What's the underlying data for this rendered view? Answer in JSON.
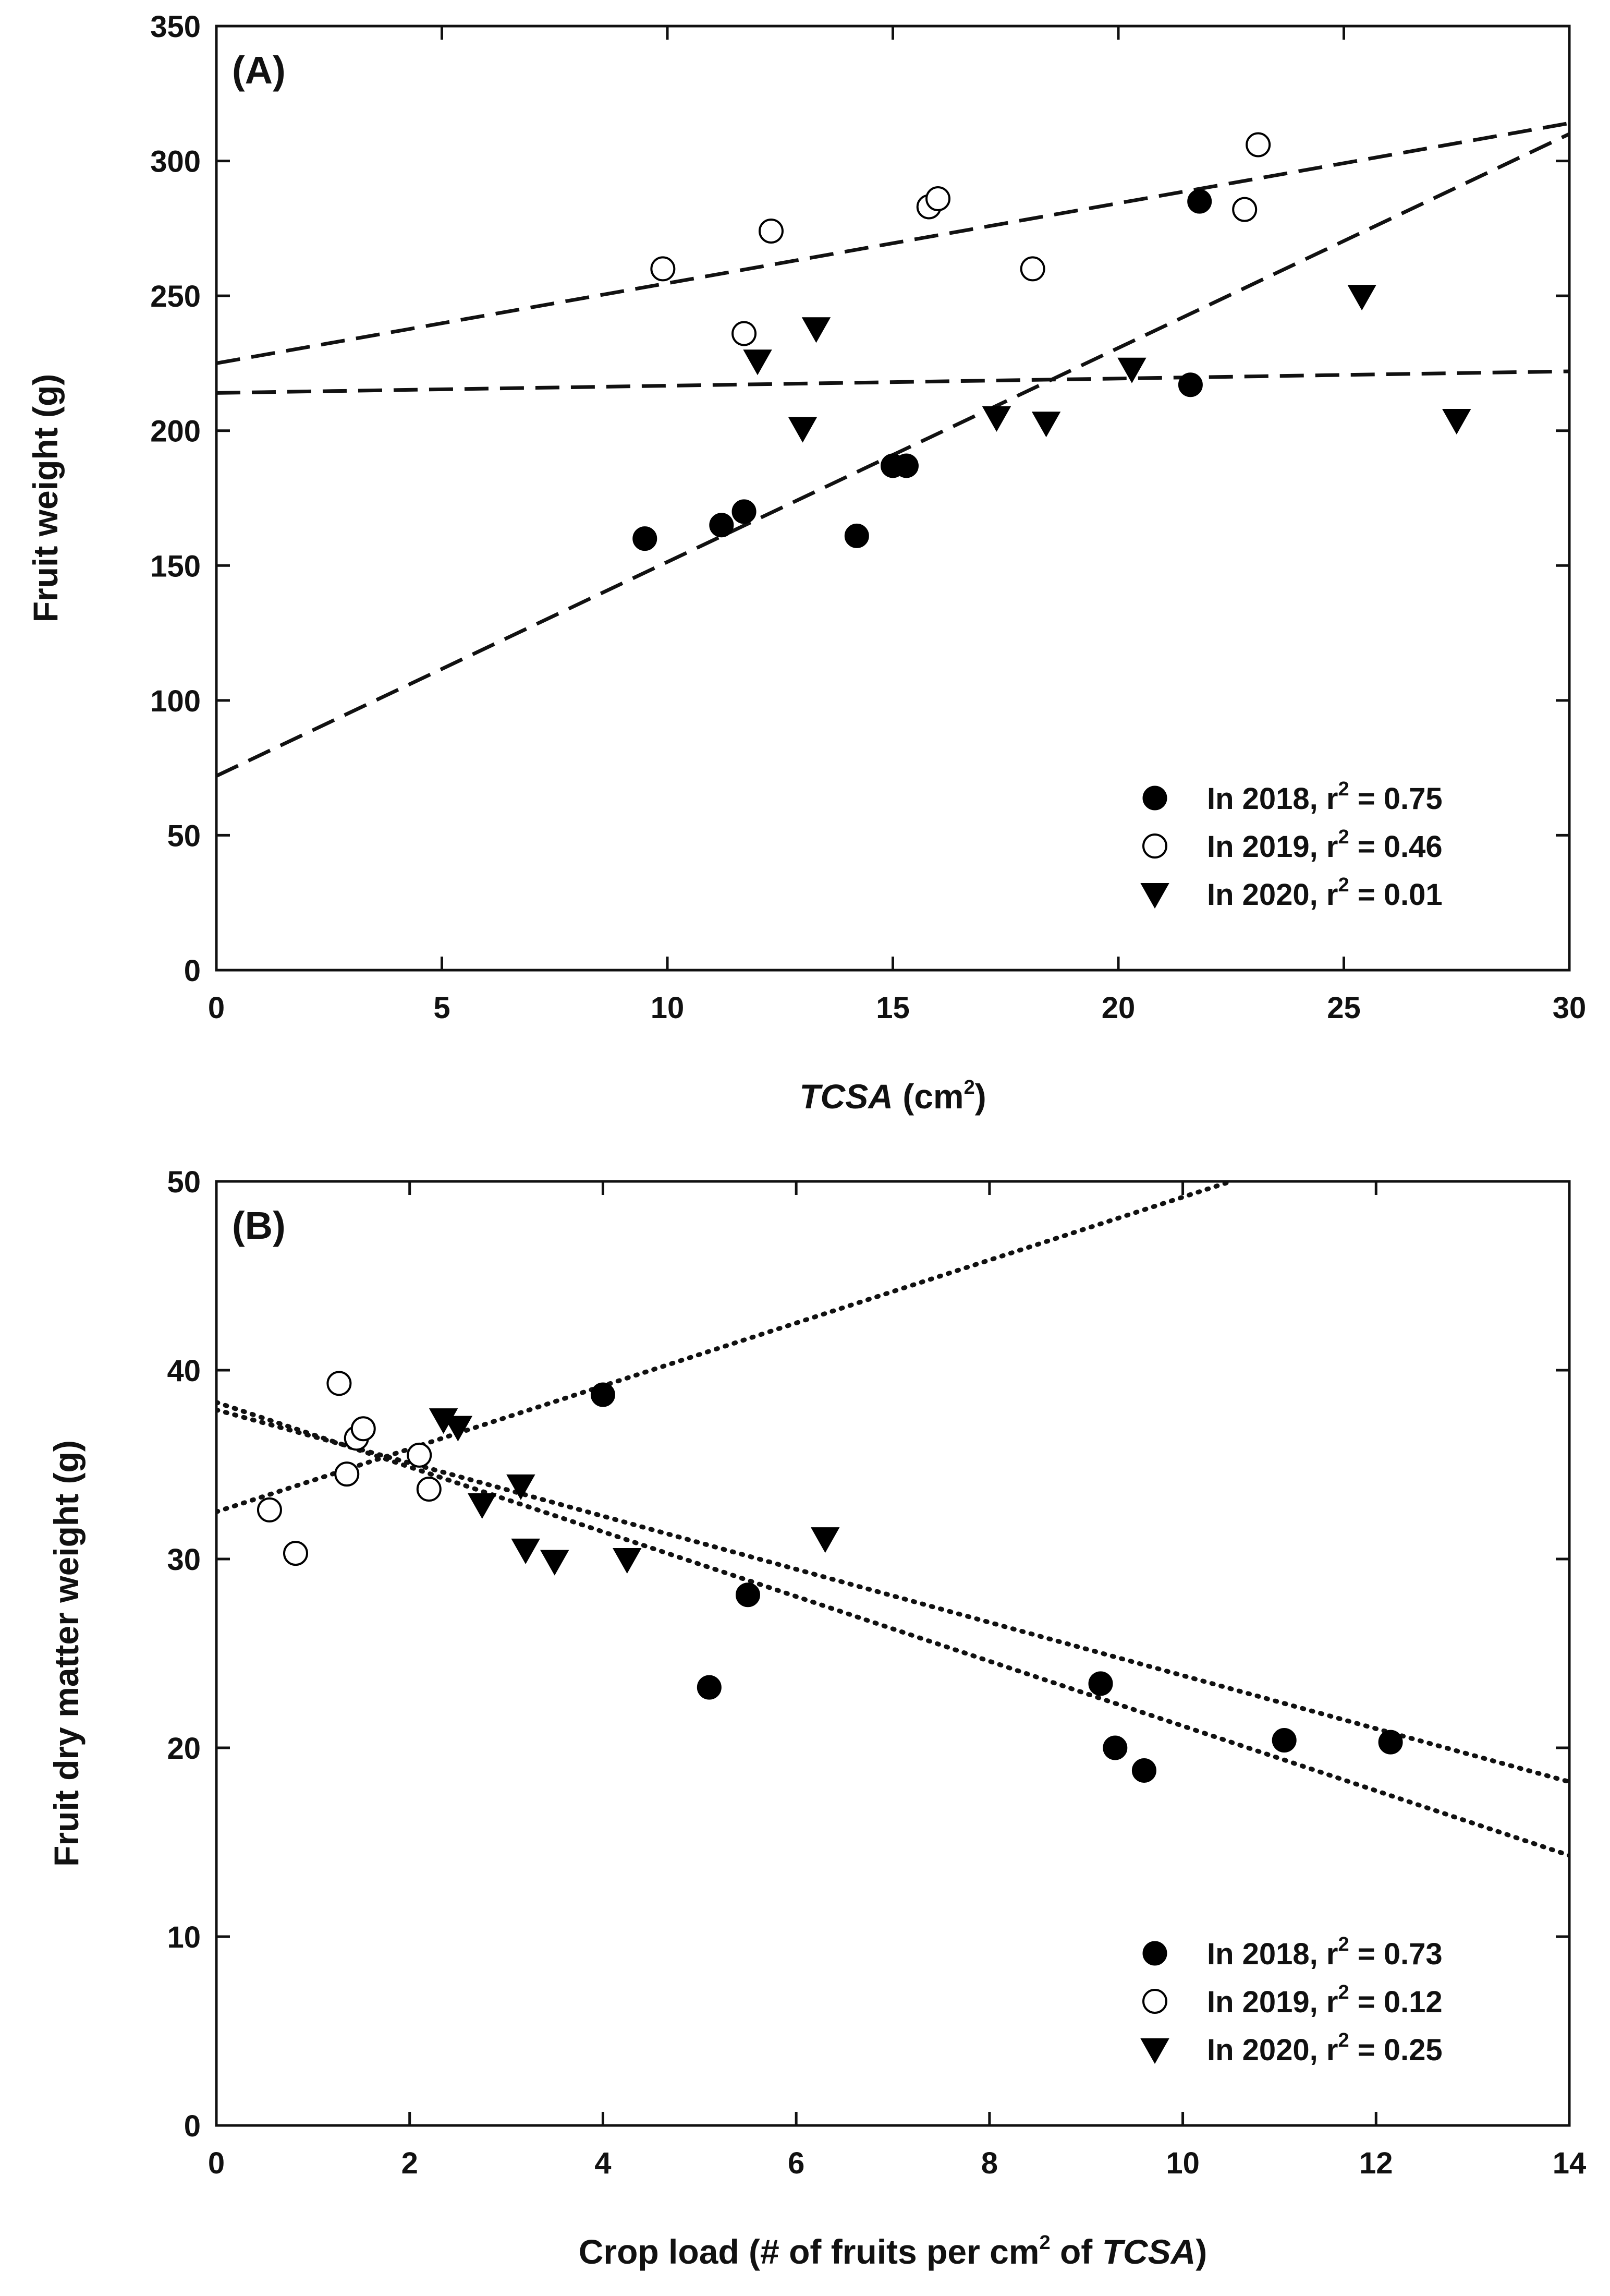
{
  "chart_data": [
    {
      "type": "scatter",
      "panel_label": "(A)",
      "xlabel": "TCSA (cm²)",
      "xlabel_parts": {
        "italic": "TCSA",
        "text": " (cm",
        "sup": "2",
        "end": ")"
      },
      "ylabel": "Fruit weight (g)",
      "xlim": [
        0,
        30
      ],
      "ylim": [
        0,
        350
      ],
      "xticks": [
        "0",
        "5",
        "10",
        "15",
        "20",
        "25",
        "30"
      ],
      "yticks": [
        "0",
        "50",
        "100",
        "150",
        "200",
        "250",
        "300",
        "350"
      ],
      "xtick_values": [
        0,
        5,
        10,
        15,
        20,
        25,
        30
      ],
      "ytick_values": [
        0,
        50,
        100,
        150,
        200,
        250,
        300,
        350
      ],
      "grid": false,
      "legend_position": "bottom-right",
      "trend_style": "dashed",
      "series": [
        {
          "name": "In 2018, r² = 0.75",
          "label": {
            "text": "In 2018, r",
            "sup": "2",
            "rest": " = 0.75"
          },
          "marker": "filled-circle",
          "x": [
            9.5,
            11.2,
            11.7,
            14.2,
            15.0,
            15.3,
            21.6,
            21.8
          ],
          "y": [
            160,
            165,
            170,
            161,
            187,
            187,
            217,
            285
          ],
          "trend": {
            "x": [
              0,
              30
            ],
            "y": [
              72,
              310
            ]
          }
        },
        {
          "name": "In 2019, r² = 0.46",
          "label": {
            "text": "In 2019, r",
            "sup": "2",
            "rest": " = 0.46"
          },
          "marker": "open-circle",
          "x": [
            9.9,
            11.7,
            12.3,
            15.8,
            16.0,
            18.1,
            22.8,
            23.1
          ],
          "y": [
            260,
            236,
            274,
            283,
            286,
            260,
            282,
            306
          ],
          "trend": {
            "x": [
              0,
              30
            ],
            "y": [
              225,
              314
            ]
          }
        },
        {
          "name": "In 2020, r² = 0.01",
          "label": {
            "text": "In 2020, r",
            "sup": "2",
            "rest": " = 0.01"
          },
          "marker": "filled-triangle-down",
          "x": [
            12.0,
            13.0,
            13.3,
            17.3,
            18.4,
            20.3,
            25.4,
            27.5
          ],
          "y": [
            226,
            201,
            238,
            205,
            203,
            223,
            250,
            204
          ],
          "trend": {
            "x": [
              0,
              30
            ],
            "y": [
              214,
              222
            ]
          }
        }
      ]
    },
    {
      "type": "scatter",
      "panel_label": "(B)",
      "xlabel": "Crop load (# of fruits per cm² of TCSA)",
      "xlabel_parts": {
        "text": "Crop load (# of fruits per cm",
        "sup": "2",
        "mid": " of ",
        "italic": "TCSA",
        "end": ")"
      },
      "ylabel": "Fruit dry matter weight (g)",
      "xlim": [
        0,
        14
      ],
      "ylim": [
        0,
        50
      ],
      "xticks": [
        "0",
        "2",
        "4",
        "6",
        "8",
        "10",
        "12",
        "14"
      ],
      "yticks": [
        "0",
        "10",
        "20",
        "30",
        "40",
        "50"
      ],
      "xtick_values": [
        0,
        2,
        4,
        6,
        8,
        10,
        12,
        14
      ],
      "ytick_values": [
        0,
        10,
        20,
        30,
        40,
        50
      ],
      "grid": false,
      "legend_position": "bottom-right",
      "trend_style": "dotted",
      "series": [
        {
          "name": "In 2018, r² = 0.73",
          "label": {
            "text": "In 2018, r",
            "sup": "2",
            "rest": " = 0.73"
          },
          "marker": "filled-circle",
          "x": [
            4.0,
            5.1,
            5.5,
            9.15,
            9.3,
            9.6,
            11.05,
            12.15
          ],
          "y": [
            38.7,
            23.2,
            28.1,
            23.4,
            20.0,
            18.8,
            20.4,
            20.3
          ],
          "trend": {
            "x": [
              0,
              14
            ],
            "y": [
              38.3,
              14.3
            ]
          }
        },
        {
          "name": "In 2019, r² = 0.12",
          "label": {
            "text": "In 2019, r",
            "sup": "2",
            "rest": " = 0.12"
          },
          "marker": "open-circle",
          "x": [
            0.55,
            0.82,
            1.27,
            1.35,
            1.45,
            1.52,
            2.1,
            2.2
          ],
          "y": [
            32.6,
            30.3,
            39.3,
            34.5,
            36.4,
            36.9,
            35.5,
            33.7
          ],
          "trend": {
            "x": [
              0,
              14
            ],
            "y": [
              37.9,
              18.2
            ]
          }
        },
        {
          "name": "In 2020, r² = 0.25",
          "label": {
            "text": "In 2020, r",
            "sup": "2",
            "rest": " = 0.25"
          },
          "marker": "filled-triangle-down",
          "x": [
            2.35,
            2.5,
            2.75,
            3.15,
            3.2,
            3.5,
            4.25,
            6.3
          ],
          "y": [
            37.4,
            37.0,
            32.9,
            33.9,
            30.5,
            29.9,
            30.0,
            31.1
          ],
          "trend": {
            "x": [
              0,
              10.5
            ],
            "y": [
              32.5,
              50
            ]
          }
        }
      ]
    }
  ]
}
